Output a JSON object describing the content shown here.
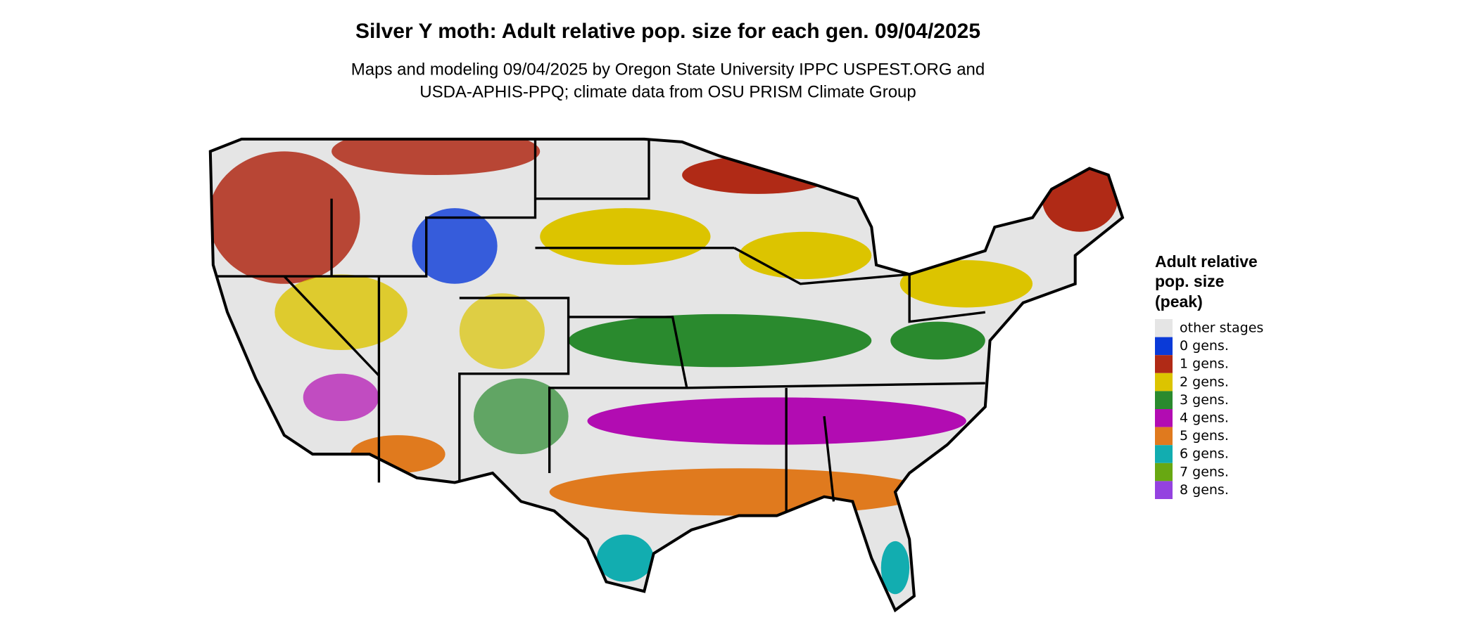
{
  "title": "Silver Y moth: Adult relative pop. size for each gen. 09/04/2025",
  "subtitle": [
    "Maps and modeling 09/04/2025 by Oregon State University IPPC USPEST.ORG and",
    "USDA-APHIS-PPQ; climate data from OSU PRISM Climate Group"
  ],
  "legend": {
    "title": [
      "Adult relative",
      "pop. size",
      "(peak)"
    ],
    "items": [
      {
        "label": "other stages",
        "color": "#e5e5e5"
      },
      {
        "label": "0 gens.",
        "color": "#0a3ad8"
      },
      {
        "label": "1 gens.",
        "color": "#b02a16"
      },
      {
        "label": "2 gens.",
        "color": "#dcc400"
      },
      {
        "label": "3 gens.",
        "color": "#2a8a2e"
      },
      {
        "label": "4 gens.",
        "color": "#b20cb2"
      },
      {
        "label": "5 gens.",
        "color": "#e07a1e"
      },
      {
        "label": "6 gens.",
        "color": "#12adb0"
      },
      {
        "label": "7 gens.",
        "color": "#68a812"
      },
      {
        "label": "8 gens.",
        "color": "#9442e0"
      }
    ]
  }
}
